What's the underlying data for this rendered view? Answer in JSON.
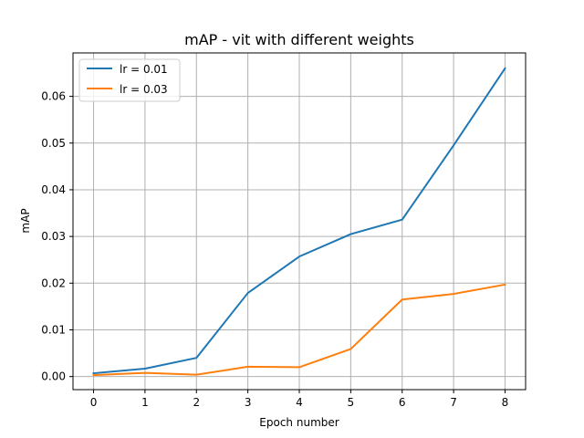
{
  "chart_data": {
    "type": "line",
    "title": "mAP - vit with different weights",
    "xlabel": "Epoch number",
    "ylabel": "mAP",
    "x": [
      0,
      1,
      2,
      3,
      4,
      5,
      6,
      7,
      8
    ],
    "xlim": [
      -0.4,
      8.4
    ],
    "ylim": [
      -0.0028,
      0.0693
    ],
    "xticks": [
      0,
      1,
      2,
      3,
      4,
      5,
      6,
      7,
      8
    ],
    "yticks": [
      0.0,
      0.01,
      0.02,
      0.03,
      0.04,
      0.05,
      0.06
    ],
    "ytick_labels": [
      "0.00",
      "0.01",
      "0.02",
      "0.03",
      "0.04",
      "0.05",
      "0.06"
    ],
    "grid": true,
    "legend_position": "top-left",
    "series": [
      {
        "name": "lr = 0.01",
        "color": "#1f77b4",
        "values": [
          0.0007,
          0.0017,
          0.004,
          0.0179,
          0.0257,
          0.0305,
          0.0336,
          0.0495,
          0.066
        ]
      },
      {
        "name": "lr = 0.03",
        "color": "#ff7f0e",
        "values": [
          0.0003,
          0.0008,
          0.0004,
          0.0021,
          0.002,
          0.0059,
          0.0165,
          0.0177,
          0.0197
        ]
      }
    ]
  }
}
